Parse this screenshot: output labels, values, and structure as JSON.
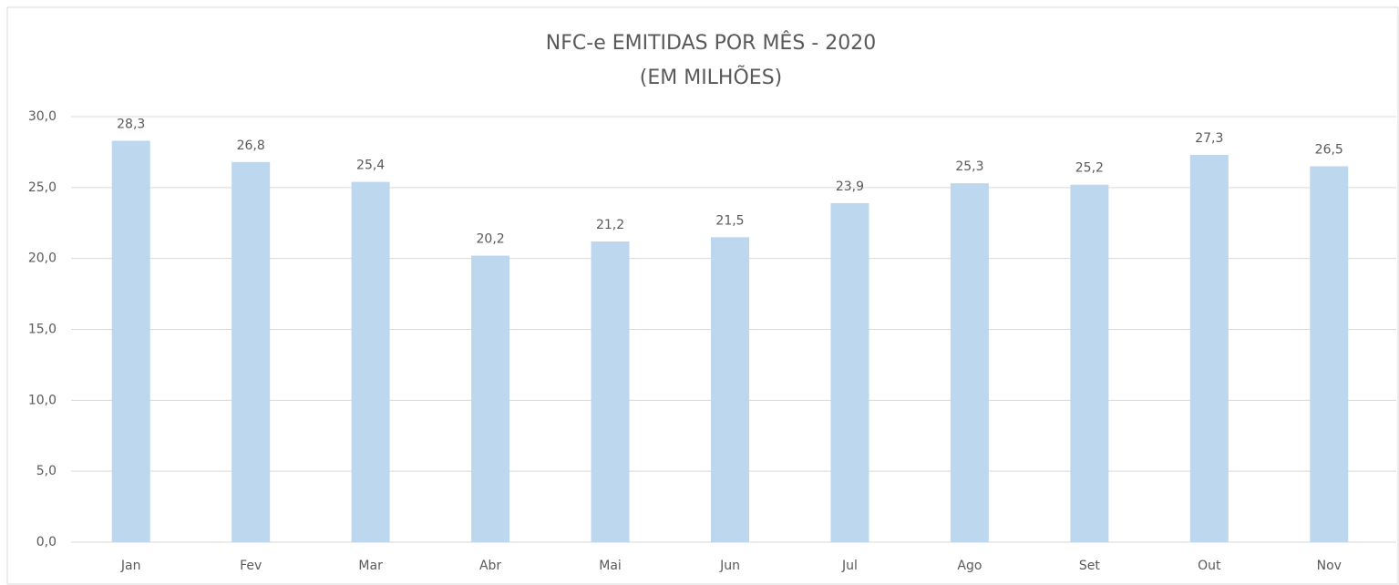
{
  "chart_data": {
    "type": "bar",
    "title": "NFC-e EMITIDAS POR MÊS - 2020",
    "subtitle": "(EM MILHÕES)",
    "categories": [
      "Jan",
      "Fev",
      "Mar",
      "Abr",
      "Mai",
      "Jun",
      "Jul",
      "Ago",
      "Set",
      "Out",
      "Nov"
    ],
    "values": [
      28.3,
      26.8,
      25.4,
      20.2,
      21.2,
      21.5,
      23.9,
      25.3,
      25.2,
      27.3,
      26.5
    ],
    "value_labels": [
      "28,3",
      "26,8",
      "25,4",
      "20,2",
      "21,2",
      "21,5",
      "23,9",
      "25,3",
      "25,2",
      "27,3",
      "26,5"
    ],
    "color": "#bdd7ee",
    "ylim": [
      0,
      30
    ],
    "yticks": [
      {
        "value": 0,
        "label": "0,0"
      },
      {
        "value": 5,
        "label": "5,0"
      },
      {
        "value": 10,
        "label": "10,0"
      },
      {
        "value": 15,
        "label": "15,0"
      },
      {
        "value": 20,
        "label": "20,0"
      },
      {
        "value": 25,
        "label": "25,0"
      },
      {
        "value": 30,
        "label": "30,0"
      }
    ],
    "grid": true
  }
}
